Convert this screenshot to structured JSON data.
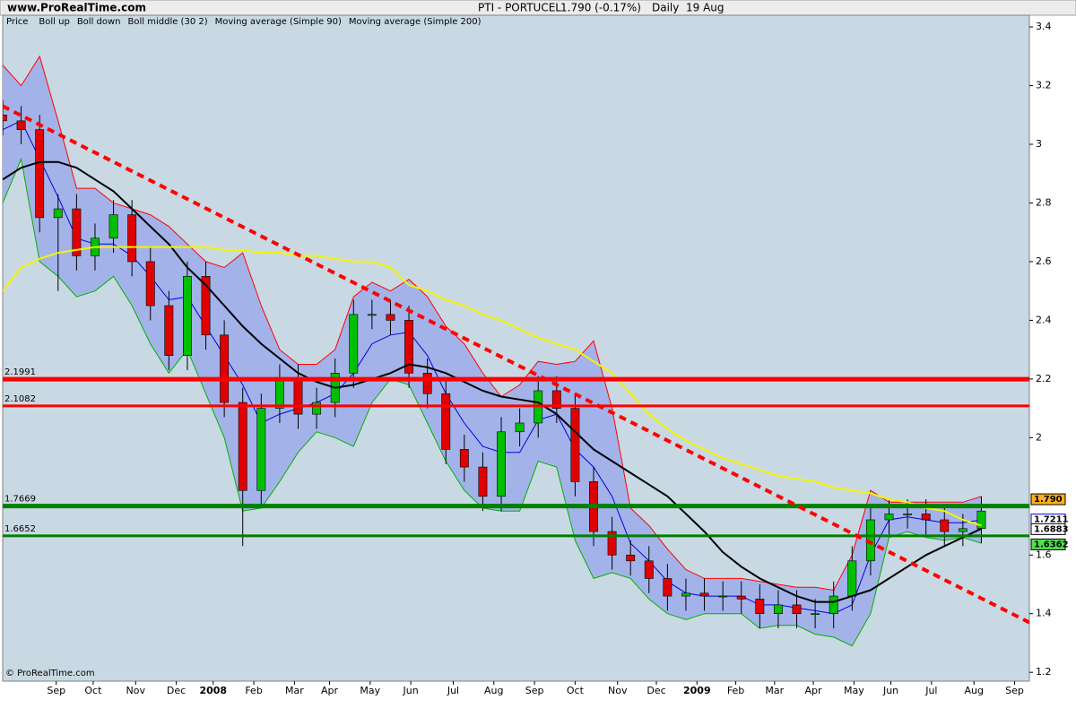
{
  "chart_data": {
    "type": "candlestick",
    "site": "www.ProRealTime.com",
    "title": "PTI - PORTUCEL",
    "quote": "1.790 (-0.17%)",
    "period": "Daily  19 Aug",
    "legend_label": "Price",
    "copyright": "© ProRealTime.com",
    "x": [
      0,
      10,
      20,
      30,
      40,
      50,
      60,
      70,
      80,
      90,
      100,
      110,
      120,
      130,
      140,
      150,
      160,
      170,
      180,
      190,
      200,
      210,
      220,
      230,
      240,
      250,
      260,
      270,
      280,
      290,
      300,
      310,
      320,
      330,
      340,
      350,
      360,
      370,
      380,
      390,
      400,
      410,
      420,
      430,
      440,
      450,
      460,
      470,
      480,
      490,
      500,
      510,
      520,
      530
    ],
    "open": [
      3.1,
      3.08,
      3.05,
      2.75,
      2.78,
      2.62,
      2.68,
      2.76,
      2.6,
      2.45,
      2.28,
      2.55,
      2.35,
      2.12,
      1.82,
      2.1,
      2.2,
      2.08,
      2.12,
      2.22,
      2.42,
      2.42,
      2.4,
      2.22,
      2.15,
      1.96,
      1.9,
      1.8,
      2.02,
      2.05,
      2.16,
      2.1,
      1.85,
      1.68,
      1.6,
      1.58,
      1.52,
      1.46,
      1.47,
      1.46,
      1.46,
      1.45,
      1.4,
      1.43,
      1.4,
      1.4,
      1.46,
      1.58,
      1.72,
      1.74,
      1.74,
      1.72,
      1.68,
      1.69
    ],
    "high": [
      3.15,
      3.13,
      3.1,
      2.83,
      2.83,
      2.73,
      2.81,
      2.81,
      2.65,
      2.5,
      2.6,
      2.6,
      2.4,
      2.17,
      2.15,
      2.25,
      2.25,
      2.17,
      2.27,
      2.47,
      2.47,
      2.47,
      2.45,
      2.27,
      2.2,
      2.01,
      1.95,
      2.07,
      2.1,
      2.21,
      2.21,
      2.15,
      1.9,
      1.73,
      1.65,
      1.63,
      1.57,
      1.52,
      1.52,
      1.51,
      1.51,
      1.5,
      1.48,
      1.48,
      1.45,
      1.51,
      1.63,
      1.77,
      1.79,
      1.79,
      1.79,
      1.77,
      1.74,
      1.8
    ],
    "low": [
      3.03,
      3.0,
      2.7,
      2.5,
      2.57,
      2.57,
      2.63,
      2.55,
      2.4,
      2.23,
      2.23,
      2.3,
      2.07,
      1.63,
      1.77,
      2.05,
      2.03,
      2.03,
      2.07,
      2.17,
      2.37,
      2.35,
      2.17,
      2.1,
      1.91,
      1.85,
      1.75,
      1.75,
      1.97,
      2.0,
      2.05,
      1.8,
      1.63,
      1.55,
      1.53,
      1.47,
      1.41,
      1.41,
      1.41,
      1.41,
      1.4,
      1.35,
      1.35,
      1.35,
      1.35,
      1.35,
      1.41,
      1.53,
      1.67,
      1.69,
      1.67,
      1.63,
      1.63,
      1.64
    ],
    "close": [
      3.08,
      3.05,
      2.75,
      2.78,
      2.62,
      2.68,
      2.76,
      2.6,
      2.45,
      2.28,
      2.55,
      2.35,
      2.12,
      1.82,
      2.1,
      2.2,
      2.08,
      2.12,
      2.22,
      2.42,
      2.42,
      2.4,
      2.22,
      2.15,
      1.96,
      1.9,
      1.8,
      2.02,
      2.05,
      2.16,
      2.1,
      1.85,
      1.68,
      1.6,
      1.58,
      1.52,
      1.46,
      1.47,
      1.46,
      1.46,
      1.45,
      1.4,
      1.43,
      1.4,
      1.4,
      1.46,
      1.58,
      1.72,
      1.74,
      1.74,
      1.72,
      1.68,
      1.69,
      1.75
    ],
    "up_color": "#00c000",
    "down_color": "#e00000",
    "band_color": "#a3b3ea",
    "series": [
      {
        "name": "Boll up",
        "color": "#ff0000",
        "values": [
          3.27,
          3.2,
          3.3,
          3.08,
          2.85,
          2.85,
          2.8,
          2.78,
          2.76,
          2.72,
          2.66,
          2.6,
          2.58,
          2.63,
          2.45,
          2.3,
          2.25,
          2.25,
          2.3,
          2.48,
          2.53,
          2.5,
          2.54,
          2.48,
          2.38,
          2.32,
          2.22,
          2.14,
          2.18,
          2.26,
          2.25,
          2.26,
          2.33,
          2.1,
          1.76,
          1.7,
          1.62,
          1.55,
          1.52,
          1.52,
          1.52,
          1.51,
          1.5,
          1.49,
          1.49,
          1.48,
          1.6,
          1.82,
          1.78,
          1.78,
          1.78,
          1.78,
          1.78,
          1.8
        ]
      },
      {
        "name": "Boll down",
        "color": "#00b000",
        "values": [
          2.8,
          2.95,
          2.6,
          2.55,
          2.48,
          2.5,
          2.55,
          2.45,
          2.32,
          2.22,
          2.3,
          2.15,
          2.0,
          1.75,
          1.76,
          1.85,
          1.95,
          2.02,
          2.0,
          1.97,
          2.12,
          2.2,
          2.18,
          2.05,
          1.92,
          1.82,
          1.76,
          1.75,
          1.75,
          1.92,
          1.9,
          1.65,
          1.52,
          1.54,
          1.52,
          1.45,
          1.4,
          1.38,
          1.4,
          1.4,
          1.4,
          1.35,
          1.36,
          1.36,
          1.33,
          1.32,
          1.29,
          1.4,
          1.66,
          1.68,
          1.66,
          1.65,
          1.66,
          1.64
        ]
      },
      {
        "name": "Boll middle (30 2)",
        "color": "#0000e0",
        "values": [
          3.05,
          3.08,
          2.95,
          2.82,
          2.68,
          2.66,
          2.66,
          2.62,
          2.55,
          2.47,
          2.48,
          2.38,
          2.28,
          2.18,
          2.05,
          2.08,
          2.1,
          2.12,
          2.15,
          2.22,
          2.32,
          2.35,
          2.36,
          2.28,
          2.15,
          2.05,
          1.97,
          1.95,
          1.95,
          2.06,
          2.08,
          1.96,
          1.9,
          1.8,
          1.64,
          1.58,
          1.51,
          1.47,
          1.46,
          1.46,
          1.46,
          1.43,
          1.43,
          1.42,
          1.41,
          1.4,
          1.43,
          1.6,
          1.72,
          1.73,
          1.72,
          1.71,
          1.71,
          1.72
        ]
      },
      {
        "name": "Moving average (Simple 90)",
        "color": "#000000",
        "values": [
          2.88,
          2.92,
          2.94,
          2.94,
          2.92,
          2.88,
          2.84,
          2.78,
          2.72,
          2.66,
          2.58,
          2.52,
          2.45,
          2.38,
          2.32,
          2.27,
          2.22,
          2.19,
          2.17,
          2.18,
          2.2,
          2.22,
          2.25,
          2.24,
          2.22,
          2.19,
          2.16,
          2.14,
          2.13,
          2.12,
          2.08,
          2.02,
          1.96,
          1.92,
          1.88,
          1.84,
          1.8,
          1.74,
          1.68,
          1.61,
          1.56,
          1.52,
          1.49,
          1.46,
          1.44,
          1.44,
          1.46,
          1.48,
          1.52,
          1.56,
          1.6,
          1.63,
          1.66,
          1.69
        ]
      },
      {
        "name": "Moving average (Simple 200)",
        "color": "#f4f400",
        "values": [
          2.5,
          2.58,
          2.61,
          2.63,
          2.64,
          2.65,
          2.65,
          2.65,
          2.65,
          2.65,
          2.65,
          2.65,
          2.64,
          2.64,
          2.63,
          2.63,
          2.62,
          2.62,
          2.61,
          2.6,
          2.6,
          2.58,
          2.52,
          2.5,
          2.47,
          2.45,
          2.42,
          2.4,
          2.37,
          2.34,
          2.32,
          2.3,
          2.26,
          2.22,
          2.15,
          2.08,
          2.03,
          1.99,
          1.96,
          1.93,
          1.91,
          1.89,
          1.87,
          1.86,
          1.85,
          1.83,
          1.82,
          1.81,
          1.79,
          1.78,
          1.76,
          1.75,
          1.72,
          1.7
        ]
      }
    ],
    "levels": [
      {
        "value": 2.1991,
        "color": "#ff0000"
      },
      {
        "value": 2.1082,
        "color": "#ff0000"
      },
      {
        "value": 1.7669,
        "color": "#008000"
      },
      {
        "value": 1.6652,
        "color": "#008000"
      }
    ],
    "trendline": {
      "x": [
        0,
        556
      ],
      "y": [
        3.13,
        1.37
      ],
      "color": "#ff0000"
    },
    "price_tags": [
      {
        "value": 1.79,
        "label": "1.790",
        "color": "#ffb020",
        "text_color": "#000000"
      },
      {
        "value": 1.7211,
        "label": "1.7211",
        "color": "#ffffff",
        "text_color": "#0000d0"
      },
      {
        "value": 1.6883,
        "label": "1.6883",
        "color": "#ffffff",
        "text_color": "#000000"
      },
      {
        "value": 1.6362,
        "label": "1.6362",
        "color": "#50e050",
        "text_color": "#000000"
      }
    ],
    "xlim": [
      0,
      556
    ],
    "ylim": [
      1.17,
      3.44
    ],
    "xticks": [
      {
        "value": 29,
        "label": "Sep"
      },
      {
        "value": 49,
        "label": "Oct"
      },
      {
        "value": 72,
        "label": "Nov"
      },
      {
        "value": 94,
        "label": "Dec"
      },
      {
        "value": 114,
        "label": "2008"
      },
      {
        "value": 136,
        "label": "Feb"
      },
      {
        "value": 158,
        "label": "Mar"
      },
      {
        "value": 177,
        "label": "Apr"
      },
      {
        "value": 199,
        "label": "May"
      },
      {
        "value": 221,
        "label": "Jun"
      },
      {
        "value": 244,
        "label": "Jul"
      },
      {
        "value": 266,
        "label": "Aug"
      },
      {
        "value": 288,
        "label": "Sep"
      },
      {
        "value": 310,
        "label": "Oct"
      },
      {
        "value": 333,
        "label": "Nov"
      },
      {
        "value": 354,
        "label": "Dec"
      },
      {
        "value": 376,
        "label": "2009"
      },
      {
        "value": 397,
        "label": "Feb"
      },
      {
        "value": 418,
        "label": "Mar"
      },
      {
        "value": 439,
        "label": "Apr"
      },
      {
        "value": 461,
        "label": "May"
      },
      {
        "value": 481,
        "label": "Jun"
      },
      {
        "value": 503,
        "label": "Jul"
      },
      {
        "value": 526,
        "label": "Aug"
      },
      {
        "value": 548,
        "label": "Sep"
      }
    ],
    "yticks": [
      1.2,
      1.4,
      1.6,
      2,
      2.2,
      2.4,
      2.6,
      2.8,
      3,
      3.2,
      3.4
    ]
  }
}
